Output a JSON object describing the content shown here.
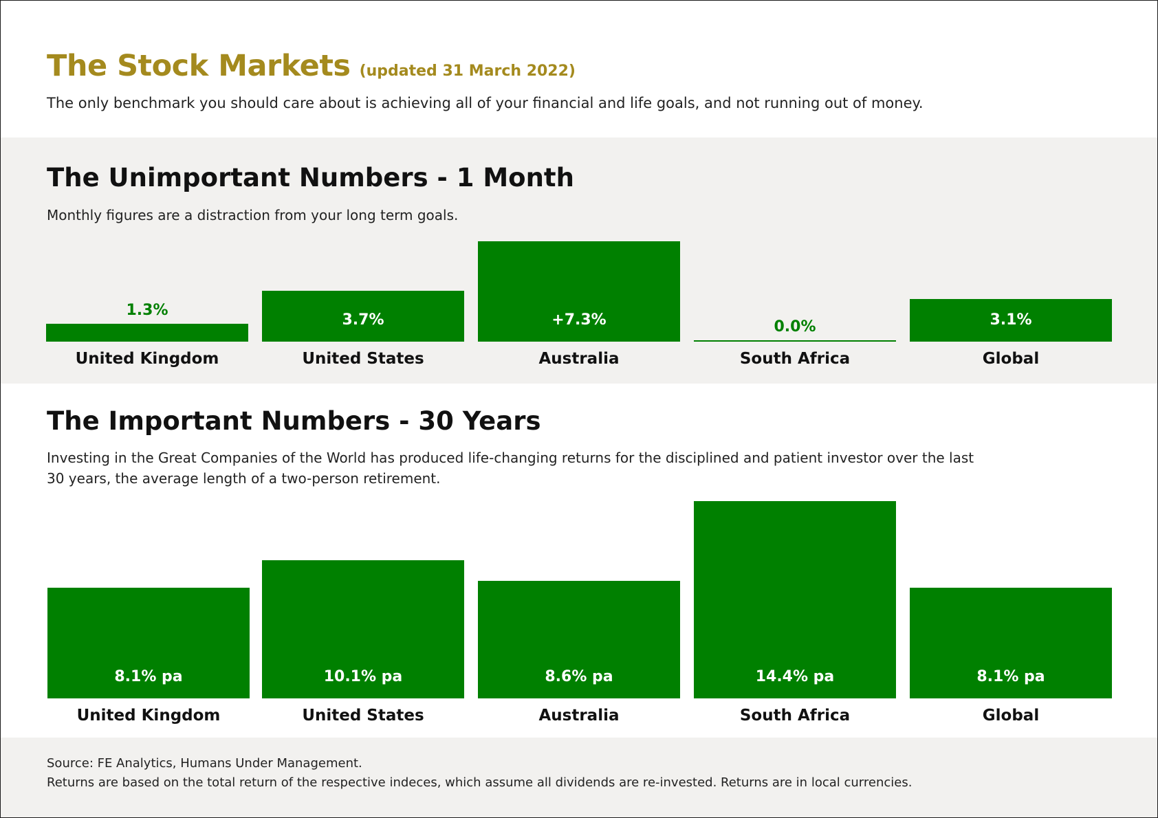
{
  "header": {
    "title": "The Stock Markets",
    "updated": "(updated 31 March 2022)",
    "intro": "The only benchmark you should care about is achieving all of your financial and life goals, and not running out of money."
  },
  "sections": [
    {
      "title": "The Unimportant Numbers - 1 Month",
      "description": "Monthly figures are a distraction from your long term goals."
    },
    {
      "title": "The Important Numbers - 30 Years",
      "description": "Investing in the Great Companies of the World has produced life-changing returns for the disciplined and patient investor over the last 30 years, the average length of a two-person retirement."
    }
  ],
  "footer": {
    "source": "Source: FE Analytics, Humans Under Management.",
    "note": "Returns are based on the total return of the respective indeces, which assume all dividends are re-invested. Returns are in local currencies."
  },
  "colors": {
    "bar": "#008000",
    "title": "#a48a1e",
    "band": "#f2f1ef"
  },
  "chart_data": [
    {
      "type": "bar",
      "categories": [
        "United Kingdom",
        "United States",
        "Australia",
        "South Africa",
        "Global"
      ],
      "values": [
        1.3,
        3.7,
        7.3,
        0.0,
        3.1
      ],
      "labels": [
        "1.3%",
        "3.7%",
        "+7.3%",
        "0.0%",
        "3.1%"
      ],
      "unit": "%",
      "ylim": [
        0,
        7.3
      ],
      "grid": false
    },
    {
      "type": "bar",
      "categories": [
        "United Kingdom",
        "United States",
        "Australia",
        "South Africa",
        "Global"
      ],
      "values": [
        8.1,
        10.1,
        8.6,
        14.4,
        8.1
      ],
      "labels": [
        "8.1% pa",
        "10.1% pa",
        "8.6% pa",
        "14.4% pa",
        "8.1% pa"
      ],
      "unit": "% pa",
      "ylim": [
        0,
        14.4
      ],
      "grid": false
    }
  ]
}
